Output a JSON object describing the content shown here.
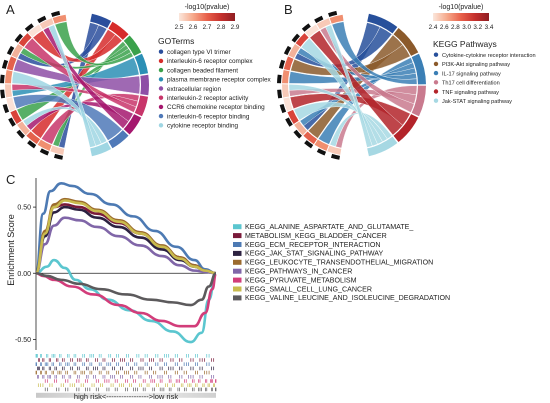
{
  "panels": {
    "a": "A",
    "b": "B",
    "c": "C"
  },
  "chart_data": [
    {
      "type": "chord",
      "panel": "A",
      "colorbar": {
        "title": "-log10(pvalue)",
        "ticks": [
          "2.5",
          "2.6",
          "2.7",
          "2.8",
          "2.9"
        ],
        "colors": [
          "#fbe7dc",
          "#f6a98b",
          "#e8604a",
          "#c5302d",
          "#8f1e23"
        ]
      },
      "legend_title": "GOTerms",
      "terms": [
        {
          "label": "collagen type VI trimer",
          "color": "#2a4e9c"
        },
        {
          "label": "interleukin-6 receptor complex",
          "color": "#d62c2b"
        },
        {
          "label": "collagen beaded filament",
          "color": "#3aa14b"
        },
        {
          "label": "plasma membrane receptor complex",
          "color": "#2b8fb5"
        },
        {
          "label": "extracellular region",
          "color": "#8e4fa6"
        },
        {
          "label": "interleukin-2 receptor activity",
          "color": "#c8356a"
        },
        {
          "label": "CCR6 chemokine receptor binding",
          "color": "#a5176e"
        },
        {
          "label": "interleukin-6 receptor binding",
          "color": "#4f79b8"
        },
        {
          "label": "cytokine receptor binding",
          "color": "#9fd6e3"
        }
      ]
    },
    {
      "type": "chord",
      "panel": "B",
      "colorbar": {
        "title": "-log10(pvalue)",
        "ticks": [
          "2.4",
          "2.6",
          "2.8",
          "3.0",
          "3.2",
          "3.4"
        ],
        "colors": [
          "#fbe7dc",
          "#f6a98b",
          "#e8604a",
          "#c5302d",
          "#8f1e23"
        ]
      },
      "legend_title": "KEGG Pathways",
      "terms": [
        {
          "label": "Cytokine-cytokine receptor interaction",
          "color": "#27509b"
        },
        {
          "label": "PI3K-Akt signaling pathway",
          "color": "#8b5a2b"
        },
        {
          "label": "IL-17 signaling pathway",
          "color": "#3b7fb5"
        },
        {
          "label": "Th17 cell differentiation",
          "color": "#c97a8e"
        },
        {
          "label": "TNF signaling pathway",
          "color": "#b3242a"
        },
        {
          "label": "Jak-STAT signaling pathway",
          "color": "#a6d8e3"
        }
      ]
    },
    {
      "type": "line",
      "panel": "C",
      "ylabel": "Enrichment Score",
      "xlabel": "high risk<----------------->low risk",
      "yticks": [
        0.5,
        0.0,
        -0.5
      ],
      "ylim": [
        -0.58,
        0.72
      ],
      "xlim": [
        0,
        100
      ],
      "series": [
        {
          "name": "KEGG_ALANINE_ASPARTATE_AND_GLUTAMATE_",
          "color": "#5bc6cf",
          "x": [
            0,
            6,
            10,
            16,
            22,
            30,
            40,
            52,
            64,
            76,
            86,
            92,
            96,
            100
          ],
          "y": [
            0.0,
            0.05,
            0.1,
            0.04,
            -0.05,
            -0.12,
            -0.2,
            -0.28,
            -0.36,
            -0.44,
            -0.52,
            -0.45,
            -0.2,
            0.0
          ]
        },
        {
          "name": "METABOLISM_KEGG_BLADDER_CANCER",
          "color": "#7a1a3a",
          "x": [
            0,
            5,
            10,
            16,
            24,
            34,
            46,
            58,
            70,
            80,
            88,
            94,
            100
          ],
          "y": [
            0.0,
            0.3,
            0.5,
            0.52,
            0.5,
            0.45,
            0.38,
            0.3,
            0.2,
            0.12,
            0.06,
            0.02,
            0.0
          ]
        },
        {
          "name": "KEGG_ECM_RECEPTOR_INTERACTION",
          "color": "#4d7ab3",
          "x": [
            0,
            4,
            8,
            14,
            20,
            30,
            42,
            54,
            66,
            78,
            88,
            94,
            100
          ],
          "y": [
            0.0,
            0.45,
            0.62,
            0.68,
            0.66,
            0.6,
            0.52,
            0.43,
            0.32,
            0.2,
            0.1,
            0.03,
            0.0
          ]
        },
        {
          "name": "KEGG_JAK_STAT_SIGNALING_PATHWAY",
          "color": "#2c2140",
          "x": [
            0,
            5,
            10,
            16,
            24,
            34,
            46,
            58,
            70,
            80,
            88,
            94,
            100
          ],
          "y": [
            0.0,
            0.28,
            0.46,
            0.5,
            0.48,
            0.42,
            0.35,
            0.27,
            0.18,
            0.1,
            0.05,
            0.02,
            0.0
          ]
        },
        {
          "name": "KEGG_LEUKOCYTE_TRANSENDOTHELIAL_MIGRATION",
          "color": "#9b6a2d",
          "x": [
            0,
            5,
            10,
            16,
            24,
            34,
            46,
            58,
            70,
            80,
            88,
            94,
            100
          ],
          "y": [
            0.0,
            0.32,
            0.52,
            0.56,
            0.54,
            0.48,
            0.4,
            0.31,
            0.21,
            0.12,
            0.06,
            0.02,
            0.0
          ]
        },
        {
          "name": "KEGG_PATHWAYS_IN_CANCER",
          "color": "#8066a8",
          "x": [
            0,
            5,
            10,
            16,
            24,
            34,
            46,
            58,
            70,
            80,
            88,
            94,
            100
          ],
          "y": [
            0.0,
            0.22,
            0.36,
            0.42,
            0.4,
            0.35,
            0.28,
            0.21,
            0.13,
            0.06,
            0.02,
            0.01,
            0.0
          ]
        },
        {
          "name": "KEGG_PYRUVATE_METABOLISM",
          "color": "#d23d7a",
          "x": [
            0,
            4,
            10,
            20,
            32,
            46,
            58,
            70,
            80,
            88,
            94,
            98,
            100
          ],
          "y": [
            0.0,
            -0.02,
            -0.05,
            -0.1,
            -0.16,
            -0.24,
            -0.3,
            -0.36,
            -0.4,
            -0.4,
            -0.3,
            -0.12,
            0.0
          ]
        },
        {
          "name": "KEGG_SMALL_CELL_LUNG_CANCER",
          "color": "#c9bb4e",
          "x": [
            0,
            5,
            10,
            16,
            24,
            34,
            46,
            58,
            70,
            80,
            88,
            94,
            100
          ],
          "y": [
            0.0,
            0.3,
            0.5,
            0.55,
            0.53,
            0.47,
            0.39,
            0.3,
            0.2,
            0.11,
            0.05,
            0.02,
            0.0
          ]
        },
        {
          "name": "KEGG_VALINE_LEUCINE_AND_ISOLEUCINE_DEGRADATION",
          "color": "#5c5a5c",
          "x": [
            0,
            6,
            14,
            24,
            36,
            50,
            64,
            76,
            86,
            92,
            96,
            100
          ],
          "y": [
            0.0,
            -0.02,
            -0.05,
            -0.08,
            -0.12,
            -0.16,
            -0.2,
            -0.22,
            -0.24,
            -0.2,
            -0.1,
            0.0
          ]
        }
      ]
    }
  ]
}
